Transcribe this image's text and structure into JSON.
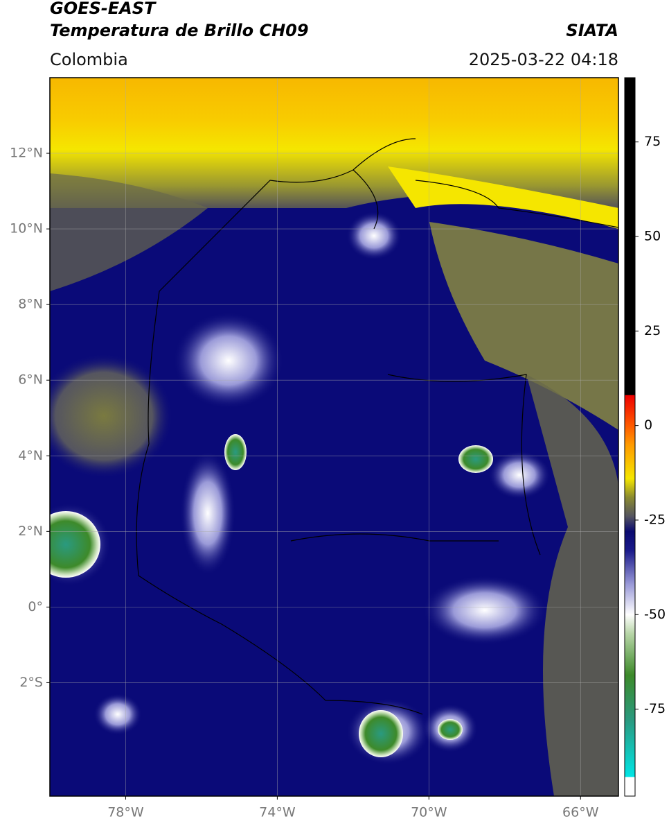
{
  "header": {
    "title": "GOES-EAST",
    "subtitle": "Temperatura de Brillo CH09",
    "source": "SIATA",
    "region": "Colombia",
    "datetime": "2025-03-22 04:18"
  },
  "map": {
    "xlim": [
      -80,
      -65
    ],
    "ylim": [
      -5,
      14
    ],
    "xticks": [
      {
        "value": -78,
        "label": "78°W"
      },
      {
        "value": -74,
        "label": "74°W"
      },
      {
        "value": -70,
        "label": "70°W"
      },
      {
        "value": -66,
        "label": "66°W"
      }
    ],
    "yticks": [
      {
        "value": -2,
        "label": "2°S"
      },
      {
        "value": 0,
        "label": "0°"
      },
      {
        "value": 2,
        "label": "2°N"
      },
      {
        "value": 4,
        "label": "4°N"
      },
      {
        "value": 6,
        "label": "6°N"
      },
      {
        "value": 8,
        "label": "8°N"
      },
      {
        "value": 10,
        "label": "10°N"
      },
      {
        "value": 12,
        "label": "12°N"
      }
    ],
    "grid": true
  },
  "colorbar": {
    "lim": [
      -98,
      92
    ],
    "ticks": [
      -75,
      -50,
      -25,
      0,
      25,
      50,
      75
    ],
    "stops": [
      {
        "value": -98,
        "color": "#ffffff"
      },
      {
        "value": -93,
        "color": "#ffffff"
      },
      {
        "value": -92.9,
        "color": "#00e5e5"
      },
      {
        "value": -78,
        "color": "#2a9a80"
      },
      {
        "value": -66,
        "color": "#3d8a2a"
      },
      {
        "value": -55,
        "color": "#b8d6a8"
      },
      {
        "value": -50,
        "color": "#ffffff"
      },
      {
        "value": -42,
        "color": "#9a9ad8"
      },
      {
        "value": -33,
        "color": "#1a1a8a"
      },
      {
        "value": -28,
        "color": "#0a0a70"
      },
      {
        "value": -24,
        "color": "#555560"
      },
      {
        "value": -19,
        "color": "#8a8a30"
      },
      {
        "value": -14,
        "color": "#f5e600"
      },
      {
        "value": -5,
        "color": "#ff9a00"
      },
      {
        "value": 0,
        "color": "#ff5a00"
      },
      {
        "value": 8,
        "color": "#ee0000"
      },
      {
        "value": 8.1,
        "color": "#000000"
      },
      {
        "value": 92,
        "color": "#000000"
      }
    ]
  }
}
